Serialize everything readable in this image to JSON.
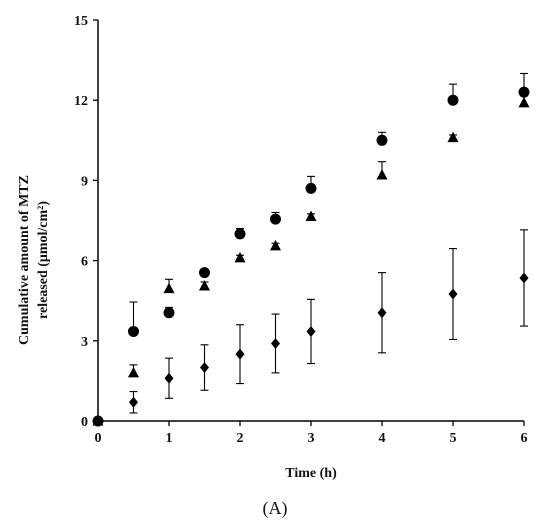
{
  "panel_label": "(A)",
  "colors": {
    "marker": "#000000",
    "axis": "#000000"
  },
  "chart_data": {
    "type": "scatter",
    "title": "",
    "xlabel": "Time (h)",
    "ylabel_line1": "Cumulative amount of MTZ",
    "ylabel_line2": "released (μmol/cm²)",
    "xlim": [
      0,
      6
    ],
    "ylim": [
      0,
      15
    ],
    "x_ticks": [
      0,
      1,
      2,
      3,
      4,
      5,
      6
    ],
    "y_ticks": [
      0,
      3,
      6,
      9,
      12,
      15
    ],
    "grid": false,
    "legend": "none",
    "series": [
      {
        "marker": "circle",
        "x": [
          0,
          0.5,
          1,
          1.5,
          2,
          2.5,
          3,
          4,
          5,
          6
        ],
        "y": [
          0,
          3.35,
          4.05,
          5.55,
          7.0,
          7.55,
          8.7,
          10.5,
          12.0,
          12.3
        ],
        "err": [
          0,
          1.1,
          0.2,
          0.1,
          0.2,
          0.25,
          0.45,
          0.3,
          0.6,
          0.7
        ]
      },
      {
        "marker": "triangle",
        "x": [
          0,
          0.5,
          1,
          1.5,
          2,
          2.5,
          3,
          4,
          5,
          6
        ],
        "y": [
          0,
          1.8,
          4.95,
          5.05,
          6.1,
          6.55,
          7.65,
          9.2,
          10.6,
          11.9
        ],
        "err": [
          0,
          0.3,
          0.35,
          0.15,
          0.1,
          0.1,
          0.1,
          0.5,
          0.1,
          0.3
        ]
      },
      {
        "marker": "diamond",
        "x": [
          0,
          0.5,
          1,
          1.5,
          2,
          2.5,
          3,
          4,
          5,
          6
        ],
        "y": [
          0,
          0.7,
          1.6,
          2.0,
          2.5,
          2.9,
          3.35,
          4.05,
          4.75,
          5.35
        ],
        "err": [
          0,
          0.4,
          0.75,
          0.85,
          1.1,
          1.1,
          1.2,
          1.5,
          1.7,
          1.8
        ]
      }
    ]
  }
}
